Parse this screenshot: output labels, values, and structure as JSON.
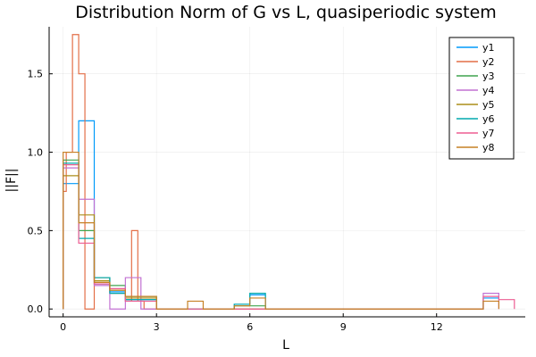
{
  "chart_data": {
    "type": "line",
    "title": "Distribution Norm of G vs L, quasiperiodic system",
    "xlabel": "L",
    "ylabel": "||F||",
    "xlim": [
      -0.45,
      14.85
    ],
    "ylim": [
      -0.05,
      1.8
    ],
    "xticks": [
      0,
      3,
      6,
      9,
      12
    ],
    "xtick_labels": [
      "0",
      "3",
      "6",
      "9",
      "12"
    ],
    "yticks": [
      0.0,
      0.5,
      1.0,
      1.5
    ],
    "ytick_labels": [
      "0.0",
      "0.5",
      "1.0",
      "1.5"
    ],
    "grid": true,
    "legend_position": "top-right",
    "step": "post",
    "series": [
      {
        "name": "y1",
        "color": "#009AFA",
        "x": [
          0,
          0.5,
          1.0,
          1.5,
          2.0,
          2.5,
          3.0,
          4.0,
          4.5,
          5.5,
          6.0,
          6.5,
          13.5,
          14.0
        ],
        "y": [
          0.8,
          1.2,
          0.16,
          0.11,
          0.06,
          0.06,
          0,
          0,
          0,
          0.03,
          0.09,
          0,
          0.07,
          0.07
        ]
      },
      {
        "name": "y2",
        "color": "#E36F47",
        "x": [
          0,
          0.1,
          0.3,
          0.5,
          0.7,
          1.0,
          1.5,
          2.0,
          2.2,
          2.4,
          2.6,
          3.0,
          13.5
        ],
        "y": [
          0.75,
          1.0,
          1.75,
          1.5,
          0,
          0.2,
          0.1,
          0.05,
          0.5,
          0.05,
          0,
          0,
          0
        ]
      },
      {
        "name": "y3",
        "color": "#3EA44E",
        "x": [
          0,
          0.5,
          1.0,
          1.5,
          2.0,
          3.0,
          5.5,
          6.5,
          13.5
        ],
        "y": [
          0.95,
          0.5,
          0.2,
          0.15,
          0.08,
          0,
          0.02,
          0,
          0
        ]
      },
      {
        "name": "y4",
        "color": "#C271D2",
        "x": [
          0,
          0.5,
          1.0,
          1.5,
          2.0,
          2.5,
          3.0,
          13.5,
          14.0
        ],
        "y": [
          0.9,
          0.7,
          0.15,
          0,
          0.2,
          0,
          0,
          0.1,
          0
        ]
      },
      {
        "name": "y5",
        "color": "#AC8E18",
        "x": [
          0,
          0.5,
          1.0,
          1.5,
          2.0,
          3.0,
          13.5
        ],
        "y": [
          0.85,
          0.6,
          0.18,
          0.12,
          0.07,
          0,
          0
        ]
      },
      {
        "name": "y6",
        "color": "#00A9AD",
        "x": [
          0,
          0.5,
          1.0,
          1.5,
          2.0,
          3.0,
          5.5,
          6.0,
          6.5,
          13.5
        ],
        "y": [
          0.93,
          0.45,
          0.2,
          0.1,
          0.06,
          0,
          0.03,
          0.1,
          0,
          0
        ]
      },
      {
        "name": "y7",
        "color": "#ED5D92",
        "x": [
          0,
          0.5,
          1.0,
          1.5,
          2.0,
          3.0,
          13.5,
          14.0,
          14.5
        ],
        "y": [
          0.92,
          0.42,
          0.16,
          0.13,
          0.05,
          0,
          0.08,
          0.06,
          0
        ]
      },
      {
        "name": "y8",
        "color": "#C68125",
        "x": [
          0,
          0.5,
          1.0,
          1.5,
          2.0,
          3.0,
          4.0,
          4.5,
          5.5,
          6.0,
          6.5,
          13.5,
          14.0
        ],
        "y": [
          1.0,
          0.55,
          0.17,
          0.12,
          0.08,
          0,
          0.05,
          0,
          0.02,
          0.07,
          0,
          0.05,
          0
        ]
      }
    ]
  }
}
